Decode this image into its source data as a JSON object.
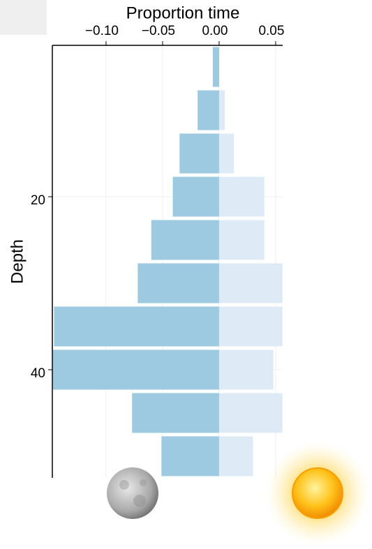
{
  "chart_data": {
    "type": "diverging-bar",
    "xlabel": "Proportion time",
    "ylabel": "Depth",
    "depths": [
      5,
      10,
      15,
      20,
      25,
      30,
      35,
      40,
      45,
      50
    ],
    "series": [
      {
        "color": "#9ecae1",
        "values": [
          -0.0056,
          -0.019,
          -0.035,
          -0.041,
          -0.06,
          -0.072,
          -0.146,
          -0.147,
          -0.077,
          -0.051
        ]
      },
      {
        "color": "#deebf7",
        "values": [
          0,
          0.005,
          0.013,
          0.04,
          0.04,
          0.056,
          0.056,
          0.048,
          0.056,
          0.03
        ]
      }
    ],
    "xlim": [
      -0.1475,
      0.0562
    ],
    "xticks": [
      {
        "value": -0.1,
        "label": "−0.10"
      },
      {
        "value": -0.05,
        "label": "−0.05"
      },
      {
        "value": 0,
        "label": "0.00"
      },
      {
        "value": 0.05,
        "label": "0.05"
      }
    ],
    "ylim": [
      2.5,
      52.5
    ],
    "yticks": [
      20,
      40
    ],
    "grid": true
  }
}
